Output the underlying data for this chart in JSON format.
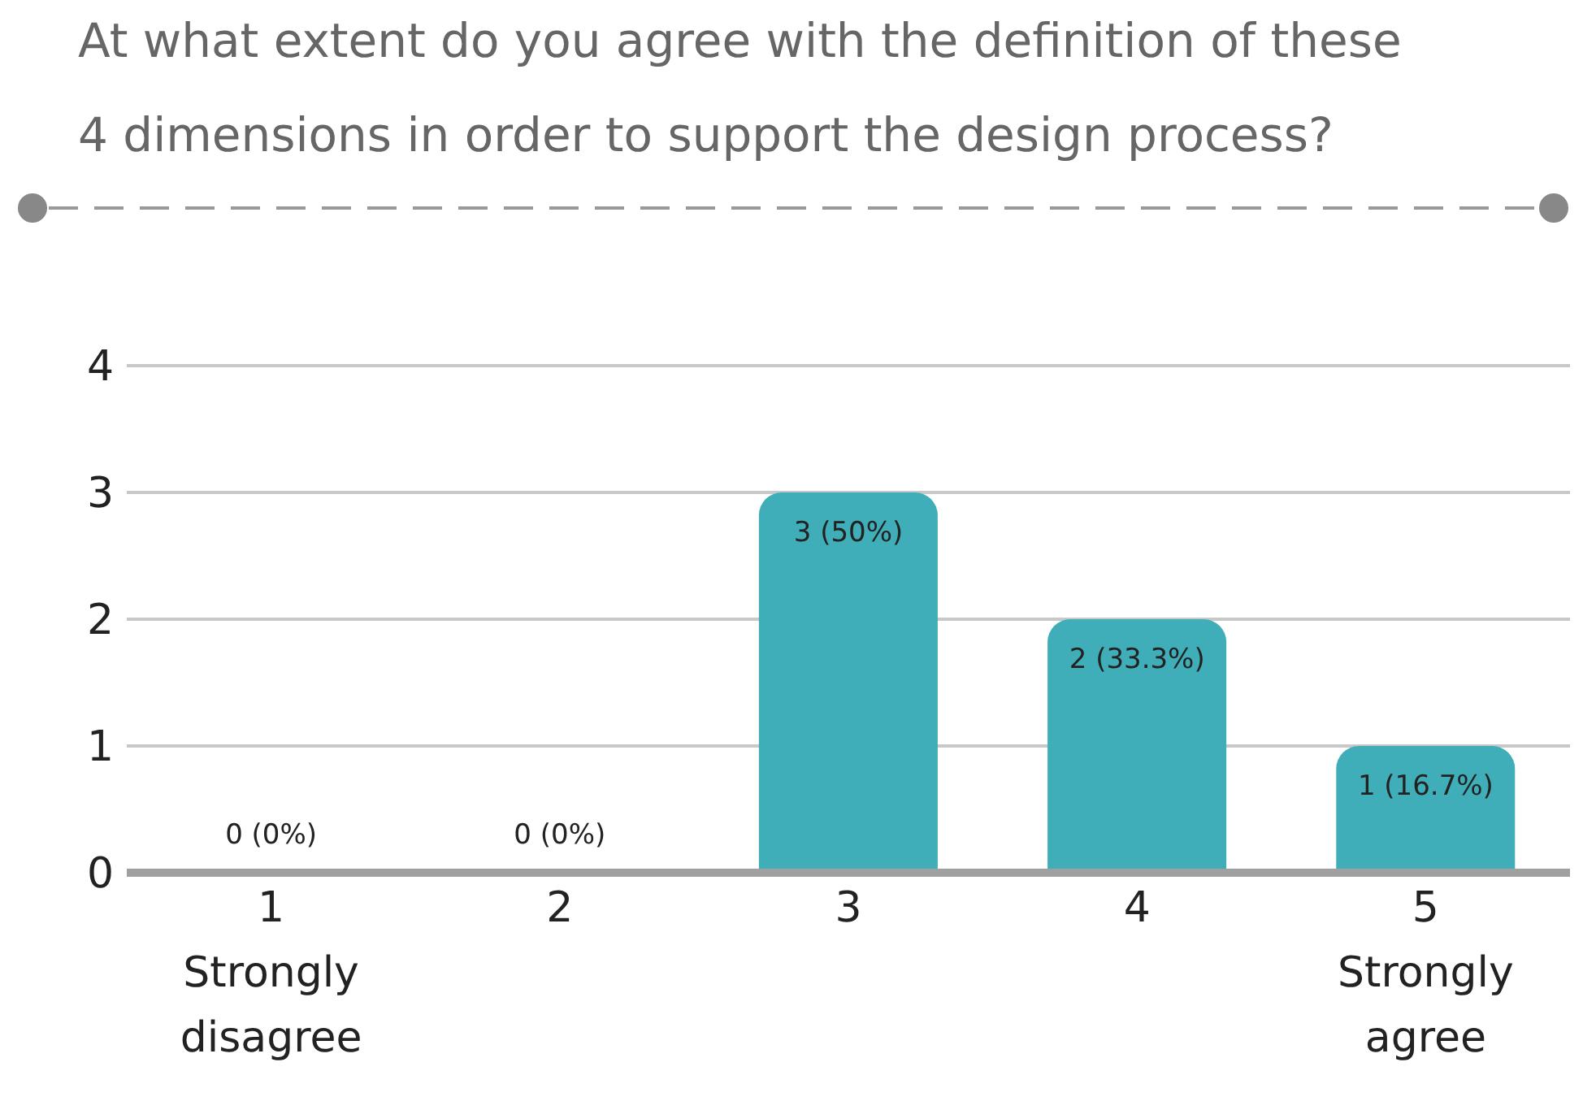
{
  "chart_data": {
    "type": "bar",
    "title": "At what extent do you agree with the definition of these 4 dimensions in order to support the design process?",
    "categories": [
      "1 Strongly disagree",
      "2",
      "3",
      "4",
      "5 Strongly agree"
    ],
    "values": [
      0,
      0,
      3,
      2,
      1
    ],
    "value_labels": [
      "0 (0%)",
      "0 (0%)",
      "3 (50%)",
      "2 (33.3%)",
      "1 (16.7%)"
    ],
    "color": "#40aeb8",
    "ylim": [
      0,
      4
    ],
    "yticks": [
      0,
      1,
      2,
      3,
      4
    ],
    "grid": "y"
  }
}
